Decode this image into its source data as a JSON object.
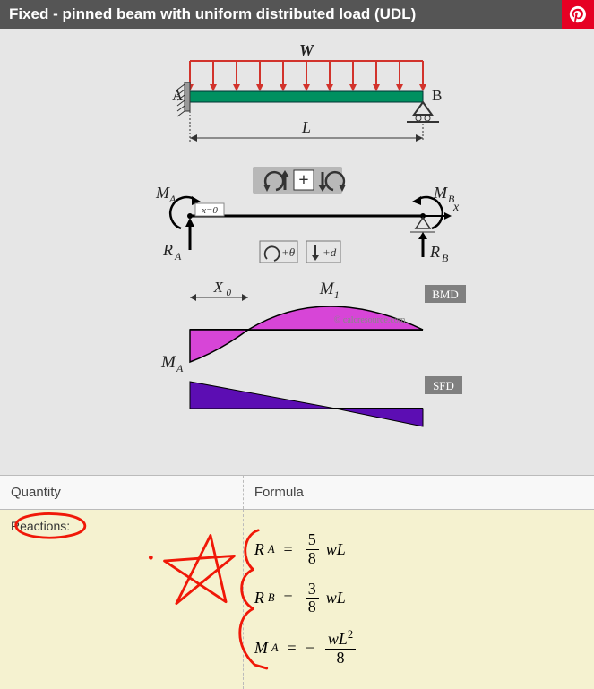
{
  "header": {
    "title": "Fixed - pinned beam with uniform distributed load (UDL)",
    "title_bg": "#555555",
    "title_color": "#ffffff",
    "pin_bg": "#e60023"
  },
  "diagram": {
    "bg": "#e6e6e6",
    "beam_color": "#009060",
    "beam_border": "#003333",
    "arrow_color": "#d2332c",
    "bmd_fill": "#d63cd6",
    "sfd_fill": "#5c0db3",
    "text_color": "#222222",
    "badge_bg": "#808080",
    "badge_text": "#ffffff",
    "labels": {
      "W": "W",
      "A": "A",
      "B": "B",
      "L": "L",
      "MA": "M",
      "MA_sub": "A",
      "MB": "M",
      "MB_sub": "B",
      "RA": "R",
      "RA_sub": "A",
      "RB": "R",
      "RB_sub": "B",
      "x0": "x=0",
      "x": "x",
      "theta": "+θ",
      "d": "+d",
      "X0": "X",
      "X0_sub": "0",
      "M1": "M",
      "M1_sub": "1",
      "BMD": "BMD",
      "SFD": "SFD",
      "watermark": "© calcresource.com"
    },
    "toolbar_bg": "#b8b8b8",
    "toolbar_border": "#777"
  },
  "table": {
    "header_q": "Quantity",
    "header_f": "Formula",
    "row_bg": "#f5f2d0",
    "quantity": "Reactions:",
    "formulas": {
      "RA_lhs": "R",
      "RA_sub": "A",
      "RA_num": "5",
      "RA_den": "8",
      "RA_tail": "wL",
      "RB_lhs": "R",
      "RB_sub": "B",
      "RB_num": "3",
      "RB_den": "8",
      "RB_tail": "wL",
      "MA_lhs": "M",
      "MA_sub": "A",
      "MA_num": "wL",
      "MA_sup": "2",
      "MA_den": "8"
    }
  },
  "annotation_color": "#f01808"
}
